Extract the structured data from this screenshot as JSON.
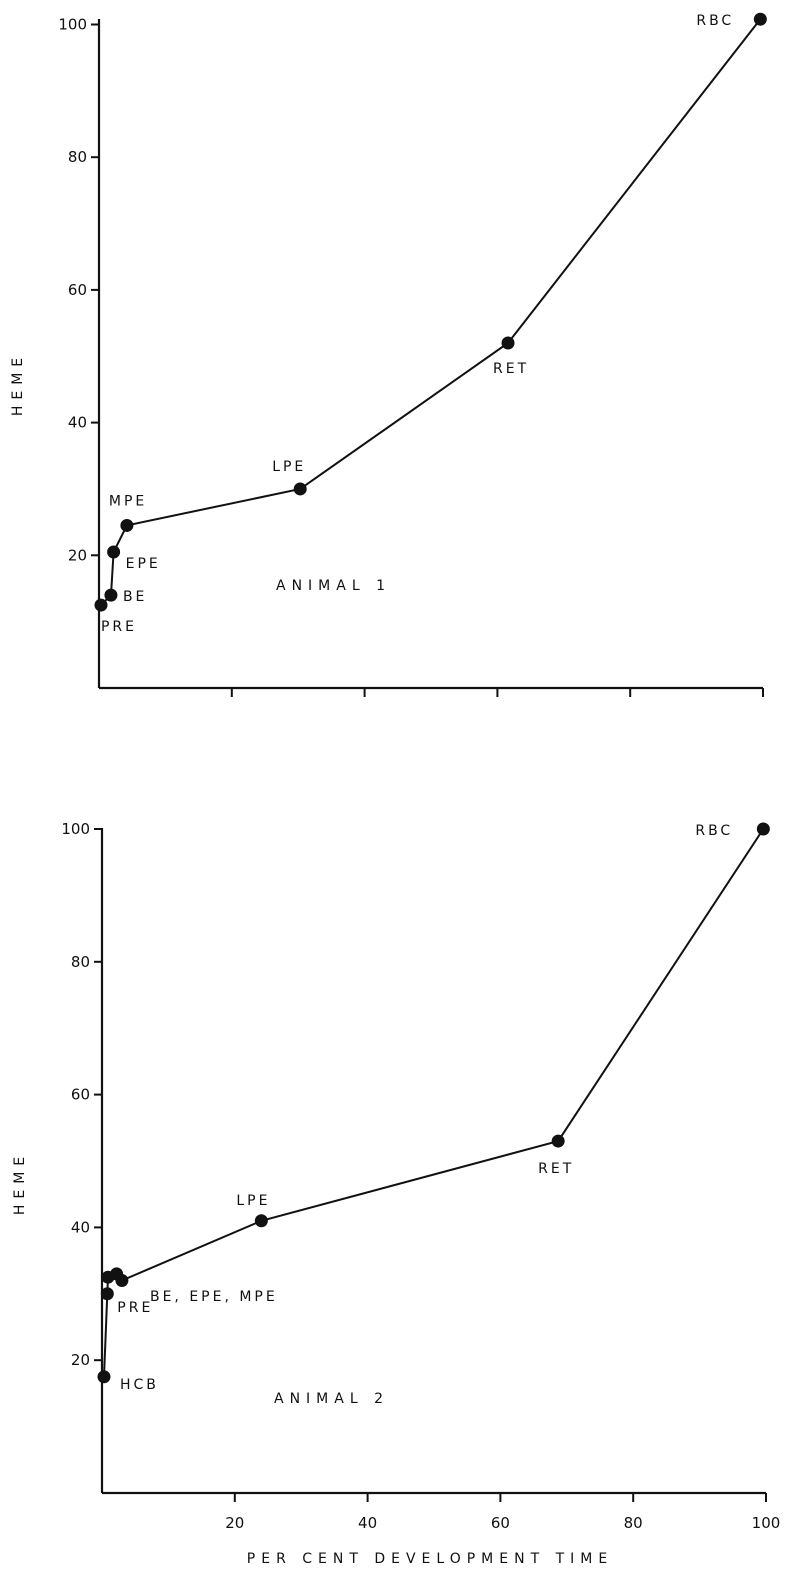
{
  "chart_data": [
    {
      "type": "line",
      "panel_label": "ANIMAL 1",
      "ylabel": "HEME",
      "xlabel": "",
      "xlim": [
        0,
        100
      ],
      "ylim": [
        0,
        100
      ],
      "y_ticks": [
        "20",
        "40",
        "60",
        "80",
        "100"
      ],
      "x_ticks": [],
      "grid": false,
      "series": [
        {
          "points": [
            {
              "label": "PRE",
              "x": 0.3,
              "y": 12.5
            },
            {
              "label": "BE",
              "x": 1.8,
              "y": 14.0
            },
            {
              "label": "EPE",
              "x": 2.2,
              "y": 20.5
            },
            {
              "label": "MPE",
              "x": 4.2,
              "y": 24.5
            },
            {
              "label": "LPE",
              "x": 30.3,
              "y": 30.0
            },
            {
              "label": "RET",
              "x": 61.6,
              "y": 52.0
            },
            {
              "label": "RBC",
              "x": 99.6,
              "y": 100.8
            }
          ]
        }
      ]
    },
    {
      "type": "line",
      "panel_label": "ANIMAL 2",
      "ylabel": "HEME",
      "xlabel": "PER CENT DEVELOPMENT TIME",
      "xlim": [
        0,
        100
      ],
      "ylim": [
        0,
        100
      ],
      "y_ticks": [
        "20",
        "40",
        "60",
        "80",
        "100"
      ],
      "x_ticks": [
        "20",
        "40",
        "60",
        "80",
        "100"
      ],
      "grid": false,
      "series": [
        {
          "points": [
            {
              "label": "HCB",
              "x": 0.3,
              "y": 17.5
            },
            {
              "label": "PRE",
              "x": 0.8,
              "y": 30.0
            },
            {
              "label": "BE, EPE, MPE",
              "x": 0.9,
              "y": 32.5
            },
            {
              "label": "",
              "x": 2.2,
              "y": 33.0
            },
            {
              "label": "",
              "x": 3.0,
              "y": 32.0
            },
            {
              "label": "LPE",
              "x": 24.0,
              "y": 41.0
            },
            {
              "label": "RET",
              "x": 68.7,
              "y": 53.0
            },
            {
              "label": "RBC",
              "x": 99.6,
              "y": 100.0
            }
          ]
        }
      ]
    }
  ]
}
